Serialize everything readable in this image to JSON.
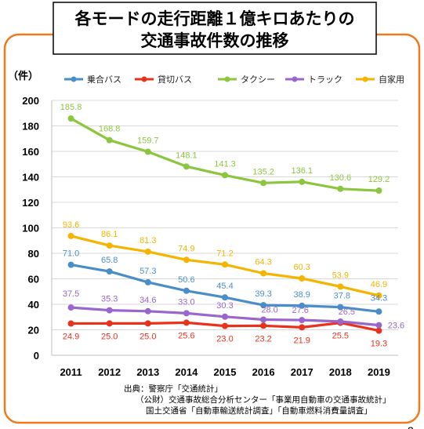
{
  "title": {
    "line1": "各モードの走行距離１億キロあたりの",
    "line2": "交通事故件数の推移"
  },
  "chart_data": {
    "type": "line",
    "ylabel": "（件）",
    "ylim": [
      0,
      200
    ],
    "yticks": [
      0,
      20,
      40,
      60,
      80,
      100,
      120,
      140,
      160,
      180,
      200
    ],
    "categories": [
      "2011",
      "2012",
      "2013",
      "2014",
      "2015",
      "2016",
      "2017",
      "2018",
      "2019"
    ],
    "grid": true,
    "legend_position": "top",
    "series": [
      {
        "name": "乗合バス",
        "color": "#4a8ec9",
        "values": [
          71.0,
          65.8,
          57.3,
          50.6,
          45.4,
          39.3,
          38.9,
          37.8,
          34.3
        ],
        "labels": [
          "71.0",
          "65.8",
          "57.3",
          "50.6",
          "45.4",
          "39.3",
          "38.9",
          "37.8",
          "34.3"
        ]
      },
      {
        "name": "貸切バス",
        "color": "#e8331c",
        "values": [
          24.9,
          25.0,
          25.0,
          25.6,
          23.0,
          23.2,
          21.9,
          25.5,
          19.3
        ],
        "labels": [
          "24.9",
          "25.0",
          "25.0",
          "25.6",
          "23.0",
          "23.2",
          "21.9",
          "25.5",
          "19.3"
        ]
      },
      {
        "name": "タクシー",
        "color": "#8cc63f",
        "values": [
          185.8,
          168.8,
          159.7,
          148.1,
          141.3,
          135.2,
          136.1,
          130.6,
          129.2
        ],
        "labels": [
          "185.8",
          "168.8",
          "159.7",
          "148.1",
          "141.3",
          "135.2",
          "136.1",
          "130.6",
          "129.2"
        ]
      },
      {
        "name": "トラック",
        "color": "#9966cc",
        "values": [
          37.5,
          35.3,
          34.6,
          33.0,
          30.3,
          28.0,
          27.6,
          26.5,
          23.6
        ],
        "labels": [
          "37.5",
          "35.3",
          "34.6",
          "33.0",
          "30.3",
          "28.0",
          "27.6",
          "26.5",
          "23.6"
        ]
      },
      {
        "name": "自家用",
        "color": "#f5b400",
        "values": [
          93.6,
          86.1,
          81.3,
          74.9,
          71.2,
          64.3,
          60.3,
          53.9,
          46.9
        ],
        "labels": [
          "93.6",
          "86.1",
          "81.3",
          "74.9",
          "71.2",
          "64.3",
          "60.3",
          "53.9",
          "46.9"
        ]
      }
    ]
  },
  "source": {
    "line1": "出典：警察庁「交通統計」",
    "line2": "（公財）交通事故総合分析センター「事業用自動車の交通事故統計」",
    "line3": "国土交通省「自動車輸送統計調査」「自動車燃料消費量調査」"
  },
  "page_number": "2",
  "colors": {
    "frame": "#f07a1a",
    "grid": "#d9d9d9"
  }
}
